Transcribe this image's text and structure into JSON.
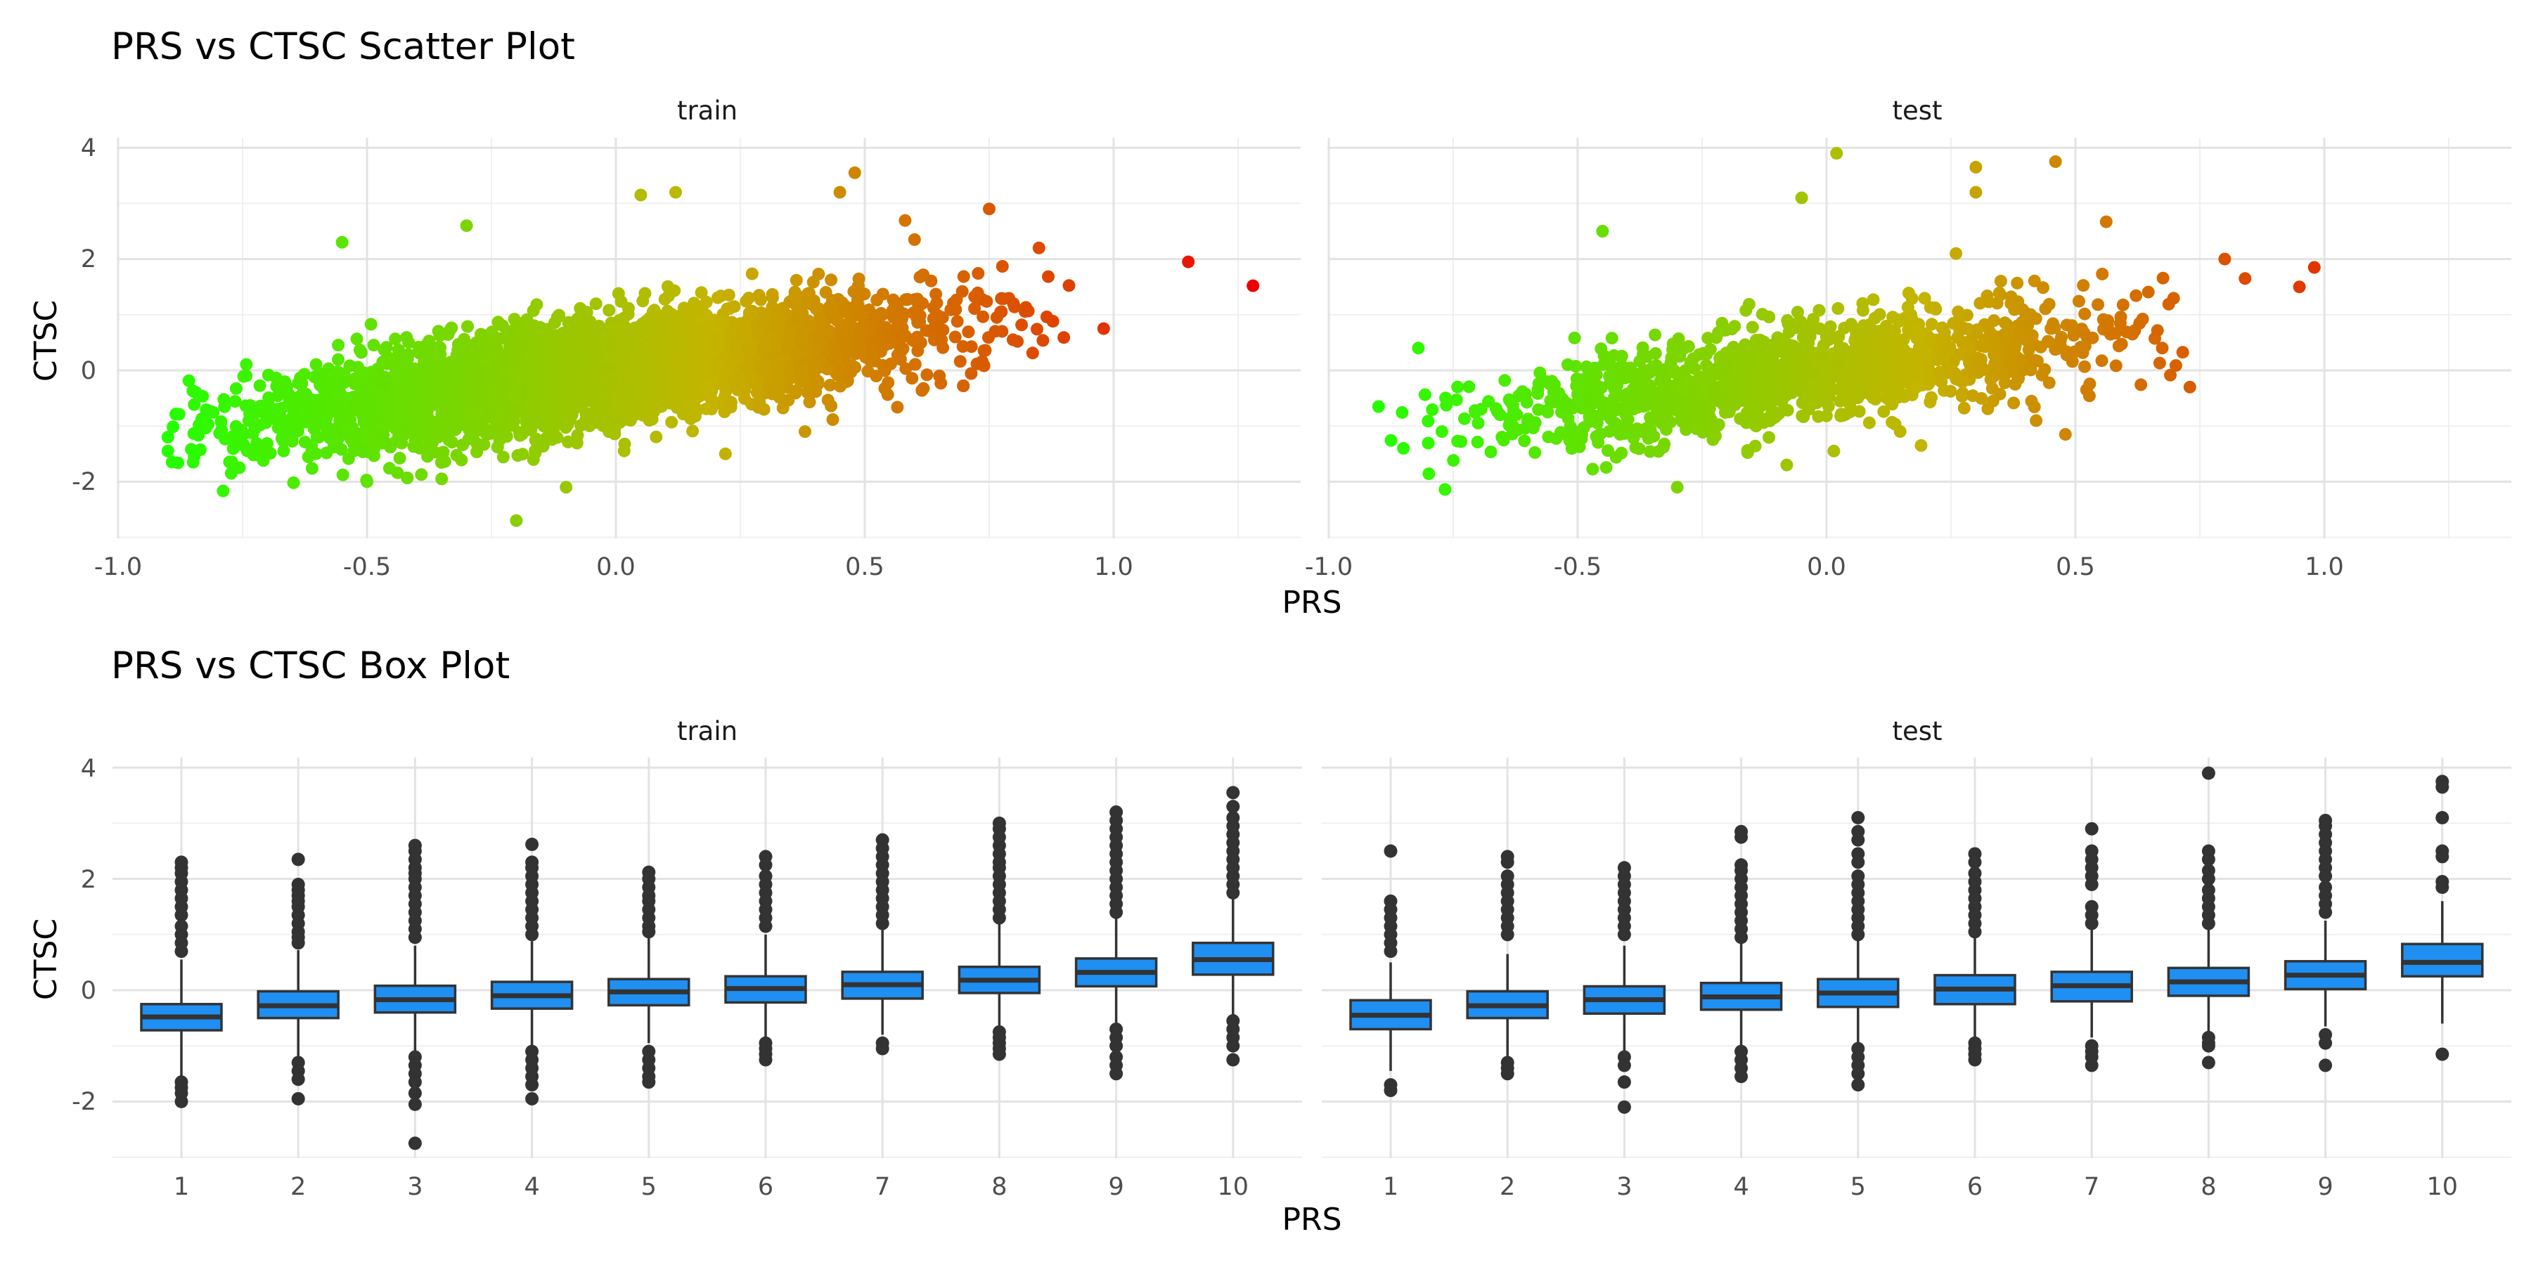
{
  "chart_data": [
    {
      "type": "scatter",
      "title": "PRS vs CTSC Scatter Plot",
      "xlabel": "PRS",
      "ylabel": "CTSC",
      "xlim": [
        -1.0,
        1.35
      ],
      "ylim": [
        -3.0,
        4.2
      ],
      "x_ticks": [
        "-1.0",
        "-0.5",
        "0.0",
        "0.5",
        "1.0"
      ],
      "y_ticks": [
        "-2",
        "0",
        "2",
        "4"
      ],
      "x_tick_values": [
        -1.0,
        -0.5,
        0.0,
        0.5,
        1.0
      ],
      "y_tick_values": [
        -2,
        0,
        2,
        4
      ],
      "grid": true,
      "color_scale": {
        "low": "#22ff00",
        "mid": "#c4b400",
        "high": "#ee0000",
        "by": "PRS"
      },
      "panels": [
        {
          "strip": "train",
          "cloud": {
            "n": 4000,
            "x_mean": -0.05,
            "x_sd": 0.33,
            "slope": 1.25,
            "noise_sd": 0.45,
            "x_range": [
              -0.9,
              0.92
            ]
          },
          "points": [
            {
              "x": 1.15,
              "y": 1.95
            },
            {
              "x": 1.28,
              "y": 1.52
            },
            {
              "x": 0.98,
              "y": 0.75
            },
            {
              "x": -0.9,
              "y": -1.2
            },
            {
              "x": -0.9,
              "y": -1.45
            },
            {
              "x": -0.2,
              "y": -2.7
            },
            {
              "x": 0.05,
              "y": 3.15
            },
            {
              "x": 0.12,
              "y": 3.2
            },
            {
              "x": 0.48,
              "y": 3.55
            },
            {
              "x": 0.45,
              "y": 3.2
            },
            {
              "x": -0.55,
              "y": 2.3
            },
            {
              "x": -0.3,
              "y": 2.6
            },
            {
              "x": 0.75,
              "y": 2.9
            },
            {
              "x": 0.85,
              "y": 2.2
            },
            {
              "x": 0.65,
              "y": -0.1
            },
            {
              "x": 0.22,
              "y": -1.5
            },
            {
              "x": -0.5,
              "y": -2.0
            },
            {
              "x": -0.35,
              "y": -1.95
            },
            {
              "x": -0.1,
              "y": -2.1
            },
            {
              "x": 0.38,
              "y": -1.1
            },
            {
              "x": 0.6,
              "y": 2.35
            }
          ]
        },
        {
          "strip": "test",
          "cloud": {
            "n": 1300,
            "x_mean": -0.05,
            "x_sd": 0.32,
            "slope": 1.25,
            "noise_sd": 0.45,
            "x_range": [
              -0.88,
              0.88
            ]
          },
          "points": [
            {
              "x": 0.98,
              "y": 1.85
            },
            {
              "x": 0.95,
              "y": 1.5
            },
            {
              "x": 0.02,
              "y": 3.9
            },
            {
              "x": 0.46,
              "y": 3.75
            },
            {
              "x": 0.3,
              "y": 3.65
            },
            {
              "x": 0.3,
              "y": 3.2
            },
            {
              "x": -0.05,
              "y": 3.1
            },
            {
              "x": -0.9,
              "y": -0.65
            },
            {
              "x": -0.82,
              "y": 0.4
            },
            {
              "x": -0.3,
              "y": -2.1
            },
            {
              "x": -0.45,
              "y": 2.5
            },
            {
              "x": 0.8,
              "y": 2.0
            },
            {
              "x": 0.73,
              "y": -0.3
            },
            {
              "x": 0.48,
              "y": -1.15
            },
            {
              "x": 0.19,
              "y": -1.35
            },
            {
              "x": -0.85,
              "y": -1.4
            },
            {
              "x": -0.08,
              "y": -1.7
            },
            {
              "x": 0.26,
              "y": 2.1
            }
          ]
        }
      ]
    },
    {
      "type": "box",
      "title": "PRS vs CTSC Box Plot",
      "xlabel": "PRS",
      "ylabel": "CTSC",
      "ylim": [
        -3.0,
        4.2
      ],
      "y_ticks": [
        "-2",
        "0",
        "2",
        "4"
      ],
      "y_tick_values": [
        -2,
        0,
        2,
        4
      ],
      "categories": [
        "1",
        "2",
        "3",
        "4",
        "5",
        "6",
        "7",
        "8",
        "9",
        "10"
      ],
      "fill_color": "#1f8ff2",
      "grid": true,
      "panels": [
        {
          "strip": "train",
          "boxes": [
            {
              "q1": -0.72,
              "median": -0.48,
              "q3": -0.25,
              "lower_whisker": -1.55,
              "upper_whisker": 0.55,
              "outliers": [
                2.3,
                2.2,
                2.1,
                1.95,
                1.8,
                1.65,
                1.5,
                1.35,
                1.15,
                1.0,
                0.85,
                0.7,
                -1.65,
                -1.75,
                -1.85,
                -2.0
              ]
            },
            {
              "q1": -0.5,
              "median": -0.28,
              "q3": -0.02,
              "lower_whisker": -1.2,
              "upper_whisker": 0.72,
              "outliers": [
                2.35,
                1.9,
                1.8,
                1.7,
                1.6,
                1.5,
                1.35,
                1.2,
                1.05,
                0.95,
                0.85,
                -1.3,
                -1.45,
                -1.6,
                -1.95
              ]
            },
            {
              "q1": -0.4,
              "median": -0.17,
              "q3": 0.08,
              "lower_whisker": -1.1,
              "upper_whisker": 0.8,
              "outliers": [
                2.6,
                2.5,
                2.35,
                2.2,
                2.1,
                2.0,
                1.85,
                1.7,
                1.55,
                1.4,
                1.25,
                1.1,
                0.95,
                -1.2,
                -1.35,
                -1.5,
                -1.65,
                -1.85,
                -2.05,
                -2.75
              ]
            },
            {
              "q1": -0.33,
              "median": -0.1,
              "q3": 0.15,
              "lower_whisker": -1.05,
              "upper_whisker": 0.88,
              "outliers": [
                2.62,
                2.3,
                2.2,
                2.05,
                1.9,
                1.75,
                1.6,
                1.45,
                1.3,
                1.15,
                1.0,
                -1.1,
                -1.25,
                -1.4,
                -1.55,
                -1.7,
                -1.95
              ]
            },
            {
              "q1": -0.27,
              "median": -0.03,
              "q3": 0.2,
              "lower_whisker": -0.95,
              "upper_whisker": 0.95,
              "outliers": [
                2.12,
                2.0,
                1.85,
                1.7,
                1.6,
                1.45,
                1.3,
                1.15,
                1.05,
                -1.1,
                -1.25,
                -1.4,
                -1.55,
                -1.65
              ]
            },
            {
              "q1": -0.22,
              "median": 0.03,
              "q3": 0.25,
              "lower_whisker": -0.88,
              "upper_whisker": 1.0,
              "outliers": [
                2.4,
                2.25,
                2.05,
                1.9,
                1.75,
                1.6,
                1.45,
                1.3,
                1.15,
                -0.95,
                -1.05,
                -1.15,
                -1.25
              ]
            },
            {
              "q1": -0.15,
              "median": 0.1,
              "q3": 0.33,
              "lower_whisker": -0.8,
              "upper_whisker": 1.1,
              "outliers": [
                2.7,
                2.55,
                2.4,
                2.25,
                2.1,
                1.95,
                1.8,
                1.65,
                1.5,
                1.35,
                1.2,
                -0.95,
                -1.05
              ]
            },
            {
              "q1": -0.05,
              "median": 0.18,
              "q3": 0.42,
              "lower_whisker": -0.7,
              "upper_whisker": 1.2,
              "outliers": [
                3.0,
                2.9,
                2.75,
                2.6,
                2.45,
                2.3,
                2.2,
                2.05,
                1.9,
                1.75,
                1.6,
                1.45,
                1.3,
                -0.75,
                -0.85,
                -0.95,
                -1.05,
                -1.15
              ]
            },
            {
              "q1": 0.07,
              "median": 0.32,
              "q3": 0.57,
              "lower_whisker": -0.6,
              "upper_whisker": 1.3,
              "outliers": [
                3.2,
                3.05,
                2.9,
                2.75,
                2.6,
                2.45,
                2.3,
                2.15,
                2.0,
                1.85,
                1.7,
                1.55,
                1.4,
                -0.7,
                -0.85,
                -1.0,
                -1.2,
                -1.35,
                -1.5
              ]
            },
            {
              "q1": 0.28,
              "median": 0.55,
              "q3": 0.85,
              "lower_whisker": -0.45,
              "upper_whisker": 1.65,
              "outliers": [
                3.55,
                3.3,
                3.1,
                2.95,
                2.8,
                2.65,
                2.5,
                2.35,
                2.2,
                2.05,
                1.9,
                1.75,
                -0.55,
                -0.7,
                -0.85,
                -1.0,
                -1.25
              ]
            }
          ]
        },
        {
          "strip": "test",
          "boxes": [
            {
              "q1": -0.7,
              "median": -0.45,
              "q3": -0.18,
              "lower_whisker": -1.45,
              "upper_whisker": 0.5,
              "outliers": [
                2.5,
                1.6,
                1.45,
                1.3,
                1.15,
                1.0,
                0.85,
                0.7,
                -1.7,
                -1.8
              ]
            },
            {
              "q1": -0.5,
              "median": -0.28,
              "q3": -0.02,
              "lower_whisker": -1.2,
              "upper_whisker": 0.65,
              "outliers": [
                2.4,
                2.3,
                2.05,
                1.9,
                1.75,
                1.6,
                1.45,
                1.3,
                1.15,
                1.0,
                -1.3,
                -1.4,
                -1.5
              ]
            },
            {
              "q1": -0.42,
              "median": -0.17,
              "q3": 0.07,
              "lower_whisker": -1.1,
              "upper_whisker": 0.8,
              "outliers": [
                2.2,
                2.05,
                1.9,
                1.75,
                1.6,
                1.45,
                1.3,
                1.15,
                1.0,
                -1.2,
                -1.35,
                -1.65,
                -2.1
              ]
            },
            {
              "q1": -0.35,
              "median": -0.12,
              "q3": 0.13,
              "lower_whisker": -1.0,
              "upper_whisker": 0.85,
              "outliers": [
                2.85,
                2.75,
                2.25,
                2.15,
                2.0,
                1.85,
                1.7,
                1.55,
                1.4,
                1.25,
                1.1,
                0.95,
                -1.1,
                -1.25,
                -1.4,
                -1.55
              ]
            },
            {
              "q1": -0.3,
              "median": -0.05,
              "q3": 0.2,
              "lower_whisker": -0.95,
              "upper_whisker": 0.95,
              "outliers": [
                3.1,
                2.85,
                2.7,
                2.45,
                2.3,
                2.05,
                1.9,
                1.75,
                1.6,
                1.45,
                1.3,
                1.15,
                1.0,
                -1.05,
                -1.2,
                -1.35,
                -1.5,
                -1.7
              ]
            },
            {
              "q1": -0.25,
              "median": 0.02,
              "q3": 0.27,
              "lower_whisker": -0.9,
              "upper_whisker": 1.0,
              "outliers": [
                2.45,
                2.3,
                2.1,
                1.95,
                1.8,
                1.65,
                1.5,
                1.35,
                1.2,
                1.05,
                -0.95,
                -1.05,
                -1.15,
                -1.25
              ]
            },
            {
              "q1": -0.2,
              "median": 0.08,
              "q3": 0.33,
              "lower_whisker": -0.85,
              "upper_whisker": 1.1,
              "outliers": [
                2.9,
                2.5,
                2.35,
                2.2,
                2.05,
                1.9,
                1.5,
                1.35,
                1.2,
                -1.0,
                -1.1,
                -1.2,
                -1.35
              ]
            },
            {
              "q1": -0.1,
              "median": 0.15,
              "q3": 0.4,
              "lower_whisker": -0.75,
              "upper_whisker": 1.15,
              "outliers": [
                3.9,
                2.5,
                2.35,
                2.15,
                2.0,
                1.8,
                1.65,
                1.5,
                1.35,
                1.2,
                -0.85,
                -0.95,
                -1.0,
                -1.3
              ]
            },
            {
              "q1": 0.02,
              "median": 0.27,
              "q3": 0.52,
              "lower_whisker": -0.65,
              "upper_whisker": 1.25,
              "outliers": [
                3.05,
                2.95,
                2.8,
                2.65,
                2.5,
                2.35,
                2.2,
                2.05,
                1.85,
                1.7,
                1.55,
                1.4,
                -0.8,
                -0.95,
                -1.35
              ]
            },
            {
              "q1": 0.25,
              "median": 0.5,
              "q3": 0.83,
              "lower_whisker": -0.6,
              "upper_whisker": 1.6,
              "outliers": [
                3.75,
                3.65,
                3.1,
                2.5,
                2.4,
                1.95,
                1.85,
                -1.15
              ]
            }
          ]
        }
      ]
    }
  ]
}
